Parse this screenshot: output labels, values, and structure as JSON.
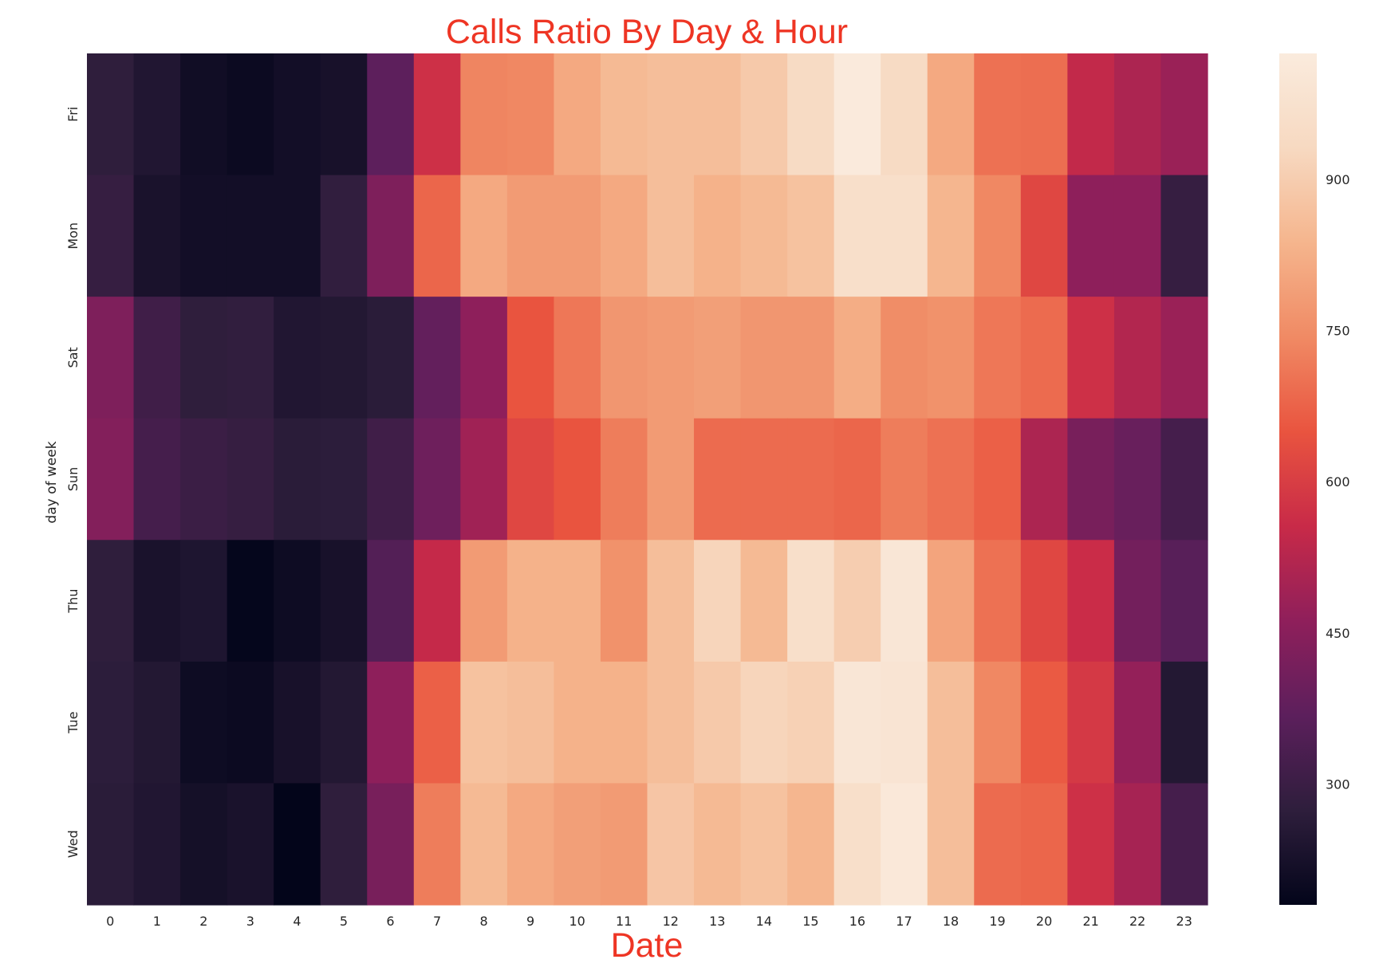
{
  "chart_data": {
    "type": "heatmap",
    "title": "Calls Ratio By Day & Hour",
    "xlabel": "Date",
    "ylabel": "day of week",
    "title_color": "#ee3524",
    "x": [
      "0",
      "1",
      "2",
      "3",
      "4",
      "5",
      "6",
      "7",
      "8",
      "9",
      "10",
      "11",
      "12",
      "13",
      "14",
      "15",
      "16",
      "17",
      "18",
      "19",
      "20",
      "21",
      "22",
      "23"
    ],
    "y": [
      "Fri",
      "Mon",
      "Sat",
      "Sun",
      "Thu",
      "Tue",
      "Wed"
    ],
    "values": [
      [
        275,
        245,
        210,
        200,
        215,
        225,
        370,
        570,
        735,
        740,
        810,
        850,
        860,
        860,
        890,
        940,
        1020,
        940,
        810,
        700,
        695,
        545,
        510,
        480
      ],
      [
        290,
        230,
        215,
        215,
        215,
        280,
        430,
        680,
        810,
        780,
        780,
        810,
        860,
        830,
        850,
        870,
        960,
        960,
        840,
        740,
        620,
        460,
        460,
        290
      ],
      [
        430,
        310,
        275,
        280,
        245,
        250,
        265,
        380,
        460,
        650,
        710,
        770,
        780,
        790,
        770,
        770,
        820,
        750,
        760,
        710,
        690,
        570,
        520,
        480
      ],
      [
        440,
        320,
        300,
        290,
        265,
        270,
        310,
        400,
        490,
        620,
        650,
        720,
        780,
        690,
        690,
        690,
        680,
        720,
        700,
        670,
        510,
        420,
        390,
        320
      ],
      [
        275,
        230,
        240,
        185,
        205,
        225,
        350,
        550,
        780,
        830,
        830,
        760,
        860,
        920,
        850,
        960,
        900,
        1000,
        800,
        700,
        620,
        560,
        410,
        360
      ],
      [
        270,
        250,
        205,
        200,
        225,
        250,
        460,
        670,
        870,
        860,
        830,
        830,
        860,
        890,
        920,
        910,
        1000,
        990,
        860,
        740,
        660,
        590,
        470,
        250
      ],
      [
        265,
        245,
        220,
        230,
        180,
        275,
        420,
        720,
        850,
        810,
        790,
        780,
        880,
        850,
        870,
        840,
        960,
        1010,
        860,
        690,
        680,
        570,
        500,
        320
      ]
    ],
    "colorbar": {
      "ticks": [
        300,
        450,
        600,
        750,
        900
      ],
      "vmin": 180,
      "vmax": 1025
    },
    "colormap": [
      "#03051a",
      "#2e1e3c",
      "#5c1f5c",
      "#8f1f5b",
      "#c82a48",
      "#e9543f",
      "#f08a64",
      "#f5b58d",
      "#f7d9c1",
      "#faebdd"
    ],
    "grid": false,
    "legend": "colorbar-right"
  }
}
